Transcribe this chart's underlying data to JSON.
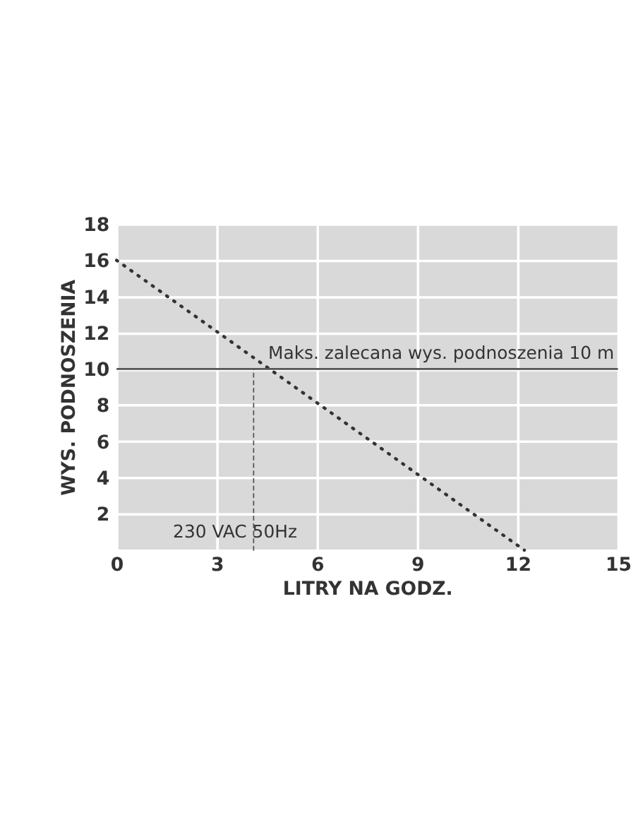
{
  "chart_data": {
    "type": "line",
    "xlabel": "LITRY NA GODZ.",
    "ylabel": "WYS. PODNOSZENIA",
    "xlim": [
      0,
      15
    ],
    "xticks": [
      0,
      3,
      6,
      9,
      12,
      15
    ],
    "ylim": [
      0,
      18
    ],
    "yticks": [
      {
        "value": 0,
        "label": null
      },
      2,
      4,
      6,
      8,
      10,
      12,
      14,
      16,
      18
    ],
    "series": [
      {
        "x": [
          0,
          12.2
        ],
        "values": [
          16,
          0
        ],
        "color": "#333333",
        "line_style": "dotted"
      },
      {
        "x": [
          4.1,
          4.1
        ],
        "values": [
          0,
          10
        ],
        "color": "#555555",
        "line_style": "dashed"
      }
    ],
    "ref_lines": [
      {
        "axis": "y",
        "value": 10,
        "label": "Maks. zalecana wys. podnoszenia 10 m",
        "color": "#555555",
        "line_style": "solid"
      }
    ],
    "annotations": [
      "230 VAC 50Hz"
    ],
    "grid": true
  }
}
